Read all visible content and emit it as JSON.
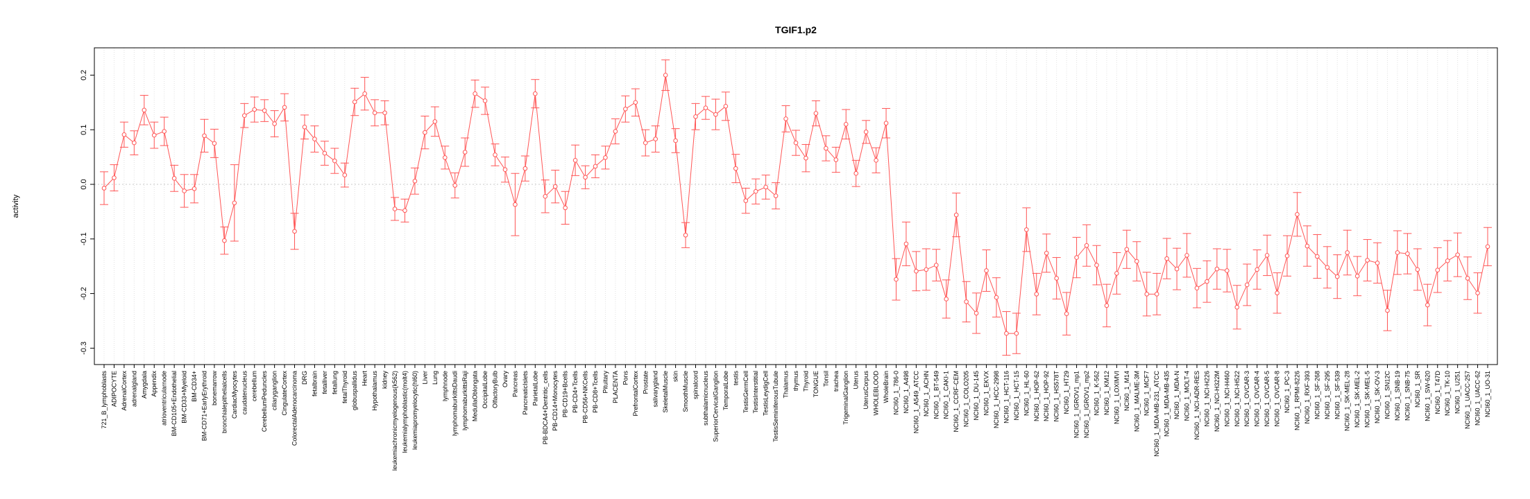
{
  "chart_data": {
    "type": "line",
    "title": "TGIF1.p2",
    "xlabel": "",
    "ylabel": "activity",
    "ylim": [
      -0.33,
      0.25
    ],
    "yticks": [
      -0.3,
      -0.2,
      -0.1,
      0.0,
      0.1,
      0.2
    ],
    "ytick_labels": [
      "-0.3",
      "-0.2",
      "-0.1",
      "0.0",
      "0.1",
      "0.2"
    ],
    "grid": true,
    "reference_line": 0.0,
    "colors": {
      "series": "#ff5555",
      "grid": "#e0e0e0",
      "reference": "#c8c8c8",
      "axis": "#000000"
    },
    "categories": [
      "721_B_lymphoblasts",
      "ADIPOCYTE",
      "AdrenalCortex",
      "adrenalgland",
      "Amygdala",
      "Appendix",
      "atrioventricularnode",
      "BM-CD105+Endothelial",
      "BM-CD33+Myeloid",
      "BM-CD34+",
      "BM-CD71+EarlyErythroid",
      "bonemarrow",
      "bronchialepithelialcells",
      "CardiacMyocytes",
      "caudatenucleus",
      "cerebellum",
      "CerebellumPeduncles",
      "ciliaryganglion",
      "CingulateCortex",
      "ColorectalAdenocarcinoma",
      "DRG",
      "fetalbrain",
      "fetalliver",
      "fetallung",
      "fetalThyroid",
      "globuspallidus",
      "Heart",
      "Hypothalamus",
      "kidney",
      "leukemiachronicmyelogenous(k562)",
      "leukemialymphoblastic(molt4)",
      "leukemiapromyelocytic(hl60)",
      "Liver",
      "Lung",
      "lymphnode",
      "lymphomaburkittsDaudi",
      "lymphomaburkittsRaji",
      "MedullaOblongata",
      "OccipitalLobe",
      "OlfactoryBulb",
      "Ovary",
      "Pancreas",
      "PancreaticIslets",
      "ParietalLobe",
      "PB-BDCA4+Dentritic_cells",
      "PB-CD14+Monocytes",
      "PB-CD19+Bcells",
      "PB-CD4+Tcells",
      "PB-CD56+NKCells",
      "PB-CD8+Tcells",
      "Pituitary",
      "PLACENTA",
      "Pons",
      "PrefrontalCortex",
      "Prostate",
      "salivarygland",
      "SkeletalMuscle",
      "skin",
      "SmoothMuscle",
      "spinalcord",
      "subthalamicnucleus",
      "SuperiorCervicalGanglion",
      "TemporalLobe",
      "testis",
      "TestisGermCell",
      "TestisInterstitial",
      "TestisLeydigCell",
      "TestisSeminiferousTubule",
      "Thalamus",
      "thymus",
      "Thyroid",
      "TONGUE",
      "Tonsil",
      "trachea",
      "TrigeminalGanglion",
      "Uterus",
      "UterusCorpus",
      "WHOLEBLOOD",
      "WholeBrain",
      "NCI60_1_786-0",
      "NCI60_1_A498",
      "NCI60_1_A549_ATCC",
      "NCI60_1_ACHN",
      "NCI60_1_BT-549",
      "NCI60_1_CAKI-1",
      "NCI60_1_CCRF-CEM",
      "NCI60_1_COLO205",
      "NCI60_1_DU-145",
      "NCI60_1_EKVX",
      "NCI60_1_HCC-2998",
      "NCI60_1_HCT-116",
      "NCI60_1_HCT-15",
      "NCI60_1_HL-60",
      "NCI60_1_HOP-62",
      "NCI60_1_HOP-92",
      "NCI60_1_HS578T",
      "NCI60_1_HT29",
      "NCI60_1_IGROV1_mp1",
      "NCI60_1_IGROV1_mp2",
      "NCI60_1_K-562",
      "NCI60_1_KM12",
      "NCI60_1_LOXIMVI",
      "NCI60_1_M14",
      "NCI60_1_MALME-3M",
      "NCI60_1_MCF7",
      "NCI60_1_MDA-MB-231_ATCC",
      "NCI60_1_MDA-MB-435",
      "NCI60_1_MDA-N",
      "NCI60_1_MOLT-4",
      "NCI60_1_NCI-ADR-RES",
      "NCI60_1_NCI-H226",
      "NCI60_1_NCI-H322M",
      "NCI60_1_NCI-H460",
      "NCI60_1_NCI-H522",
      "NCI60_1_OVCAR-3",
      "NCI60_1_OVCAR-4",
      "NCI60_1_OVCAR-5",
      "NCI60_1_OVCAR-8",
      "NCI60_1_PC-3",
      "NCI60_1_RPMI-8226",
      "NCI60_1_RXF-393",
      "NCI60_1_SF-268",
      "NCI60_1_SF-295",
      "NCI60_1_SF-539",
      "NCI60_1_SK-MEL-28",
      "NCI60_1_SK-MEL-2",
      "NCI60_1_SK-MEL-5",
      "NCI60_1_SK-OV-3",
      "NCI60_1_SN12C",
      "NCI60_1_SNB-19",
      "NCI60_1_SNB-75",
      "NCI60_1_SR",
      "NCI60_1_SW-620",
      "NCI60_1_T47D",
      "NCI60_1_TK-10",
      "NCI60_1_U251",
      "NCI60_1_UACC-257",
      "NCI60_1_UACC-62",
      "NCI60_1_UO-31"
    ],
    "series": [
      {
        "values": [
          -0.007,
          0.012,
          0.091,
          0.076,
          0.136,
          0.09,
          0.097,
          0.011,
          -0.012,
          -0.008,
          0.089,
          0.075,
          -0.103,
          -0.034,
          0.126,
          0.137,
          0.135,
          0.111,
          0.141,
          -0.086,
          0.105,
          0.083,
          0.057,
          0.043,
          0.017,
          0.151,
          0.166,
          0.131,
          0.131,
          -0.045,
          -0.048,
          0.006,
          0.095,
          0.115,
          0.049,
          -0.002,
          0.059,
          0.166,
          0.153,
          0.054,
          0.027,
          -0.037,
          0.029,
          0.166,
          -0.022,
          -0.004,
          -0.043,
          0.044,
          0.013,
          0.033,
          0.049,
          0.097,
          0.138,
          0.15,
          0.076,
          0.083,
          0.2,
          0.08,
          -0.093,
          0.124,
          0.14,
          0.128,
          0.143,
          0.029,
          -0.03,
          -0.013,
          -0.005,
          -0.021,
          0.12,
          0.076,
          0.048,
          0.13,
          0.066,
          0.045,
          0.11,
          0.02,
          0.096,
          0.044,
          0.112,
          -0.174,
          -0.109,
          -0.159,
          -0.156,
          -0.148,
          -0.21,
          -0.056,
          -0.215,
          -0.236,
          -0.158,
          -0.207,
          -0.273,
          -0.273,
          -0.083,
          -0.201,
          -0.126,
          -0.172,
          -0.237,
          -0.134,
          -0.112,
          -0.148,
          -0.222,
          -0.163,
          -0.119,
          -0.141,
          -0.201,
          -0.201,
          -0.136,
          -0.155,
          -0.13,
          -0.19,
          -0.178,
          -0.155,
          -0.158,
          -0.225,
          -0.184,
          -0.156,
          -0.13,
          -0.199,
          -0.131,
          -0.055,
          -0.113,
          -0.132,
          -0.152,
          -0.169,
          -0.125,
          -0.168,
          -0.139,
          -0.144,
          -0.231,
          -0.125,
          -0.127,
          -0.156,
          -0.221,
          -0.157,
          -0.14,
          -0.129,
          -0.172,
          -0.199,
          -0.114
        ],
        "error": [
          0.03,
          0.024,
          0.023,
          0.022,
          0.027,
          0.024,
          0.026,
          0.024,
          0.03,
          0.026,
          0.03,
          0.026,
          0.025,
          0.07,
          0.022,
          0.023,
          0.02,
          0.024,
          0.025,
          0.033,
          0.022,
          0.024,
          0.022,
          0.023,
          0.022,
          0.025,
          0.03,
          0.024,
          0.022,
          0.021,
          0.021,
          0.024,
          0.03,
          0.027,
          0.021,
          0.023,
          0.026,
          0.025,
          0.025,
          0.02,
          0.023,
          0.057,
          0.023,
          0.026,
          0.03,
          0.03,
          0.03,
          0.028,
          0.021,
          0.021,
          0.021,
          0.023,
          0.024,
          0.025,
          0.024,
          0.024,
          0.028,
          0.022,
          0.023,
          0.024,
          0.021,
          0.028,
          0.026,
          0.026,
          0.023,
          0.023,
          0.022,
          0.024,
          0.024,
          0.023,
          0.025,
          0.023,
          0.023,
          0.023,
          0.027,
          0.024,
          0.021,
          0.023,
          0.027,
          0.038,
          0.04,
          0.036,
          0.038,
          0.029,
          0.035,
          0.04,
          0.037,
          0.037,
          0.038,
          0.036,
          0.04,
          0.037,
          0.04,
          0.038,
          0.035,
          0.038,
          0.039,
          0.037,
          0.038,
          0.036,
          0.039,
          0.038,
          0.035,
          0.036,
          0.04,
          0.038,
          0.037,
          0.038,
          0.04,
          0.036,
          0.038,
          0.037,
          0.039,
          0.04,
          0.038,
          0.036,
          0.037,
          0.037,
          0.037,
          0.04,
          0.037,
          0.04,
          0.038,
          0.04,
          0.041,
          0.036,
          0.038,
          0.037,
          0.037,
          0.04,
          0.037,
          0.038,
          0.038,
          0.041,
          0.037,
          0.04,
          0.039,
          0.037,
          0.035
        ]
      }
    ]
  }
}
